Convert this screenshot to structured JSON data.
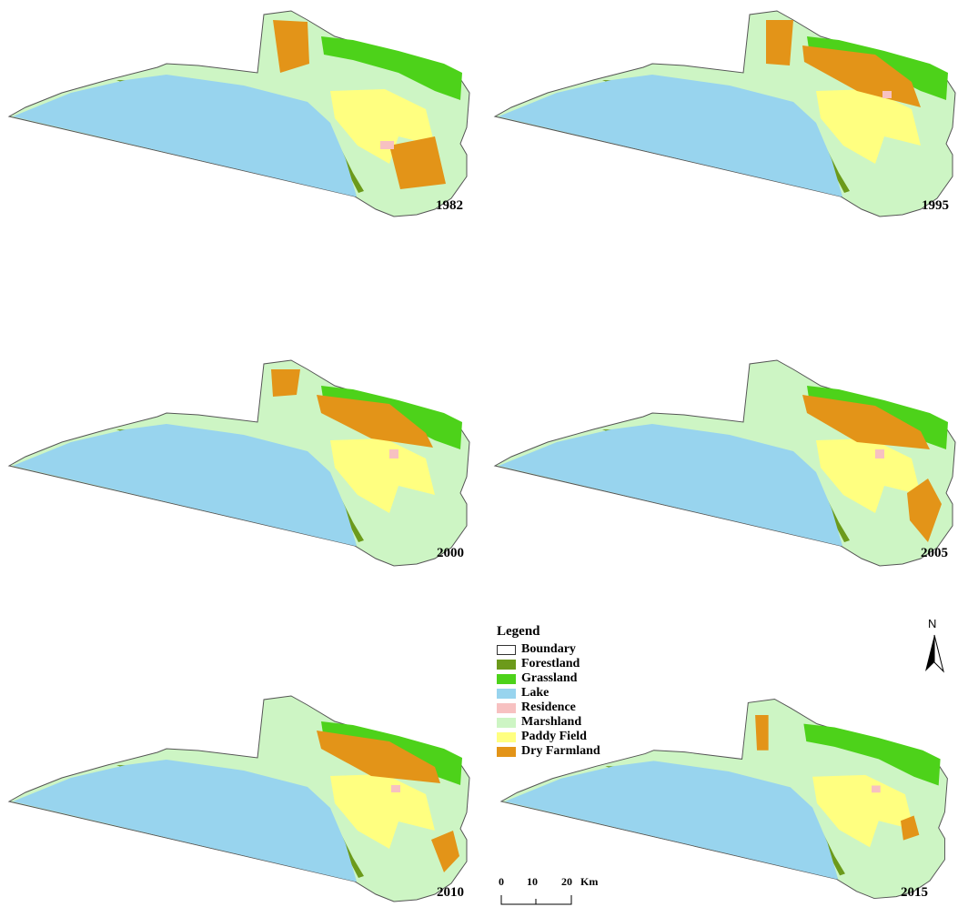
{
  "maps": [
    {
      "year": "1982",
      "dry": [
        [
          420,
          150
        ],
        [
          470,
          140
        ],
        [
          482,
          192
        ],
        [
          432,
          198
        ]
      ],
      "dryN": [
        [
          292,
          12
        ],
        [
          330,
          14
        ],
        [
          332,
          60
        ],
        [
          300,
          70
        ]
      ],
      "residence": [
        [
          410,
          145
        ],
        [
          425,
          145
        ],
        [
          425,
          154
        ],
        [
          410,
          154
        ]
      ]
    },
    {
      "year": "1995",
      "dry": [
        [
          300,
          12
        ],
        [
          330,
          12
        ],
        [
          326,
          62
        ],
        [
          300,
          60
        ]
      ],
      "dryN": [
        [
          340,
          40
        ],
        [
          420,
          50
        ],
        [
          460,
          80
        ],
        [
          470,
          108
        ],
        [
          400,
          90
        ],
        [
          342,
          58
        ]
      ],
      "residence": [
        [
          428,
          90
        ],
        [
          438,
          90
        ],
        [
          438,
          98
        ],
        [
          428,
          98
        ]
      ]
    },
    {
      "year": "2000",
      "dry": [
        [
          290,
          12
        ],
        [
          322,
          12
        ],
        [
          318,
          40
        ],
        [
          292,
          42
        ]
      ],
      "dryN": [
        [
          340,
          40
        ],
        [
          420,
          50
        ],
        [
          460,
          82
        ],
        [
          468,
          98
        ],
        [
          400,
          88
        ],
        [
          345,
          60
        ]
      ],
      "residence": [
        [
          420,
          100
        ],
        [
          430,
          100
        ],
        [
          430,
          110
        ],
        [
          420,
          110
        ]
      ]
    },
    {
      "year": "2005",
      "dry": [
        [
          455,
          148
        ],
        [
          478,
          132
        ],
        [
          493,
          160
        ],
        [
          478,
          202
        ],
        [
          458,
          178
        ]
      ],
      "dryN": [
        [
          340,
          40
        ],
        [
          420,
          52
        ],
        [
          470,
          80
        ],
        [
          480,
          100
        ],
        [
          400,
          92
        ],
        [
          345,
          60
        ]
      ],
      "residence": [
        [
          420,
          100
        ],
        [
          430,
          100
        ],
        [
          430,
          110
        ],
        [
          420,
          110
        ]
      ]
    },
    {
      "year": "2010",
      "dry": [
        [
          466,
          160
        ],
        [
          490,
          150
        ],
        [
          497,
          178
        ],
        [
          480,
          196
        ]
      ],
      "dryN": [
        [
          340,
          40
        ],
        [
          420,
          52
        ],
        [
          470,
          80
        ],
        [
          476,
          98
        ],
        [
          400,
          90
        ],
        [
          345,
          60
        ]
      ],
      "residence": [
        [
          422,
          100
        ],
        [
          432,
          100
        ],
        [
          432,
          108
        ],
        [
          422,
          108
        ]
      ]
    },
    {
      "year": "2015",
      "dry": [
        [
          455,
          140
        ],
        [
          470,
          134
        ],
        [
          476,
          156
        ],
        [
          458,
          162
        ]
      ],
      "dryN": [
        [
          290,
          20
        ],
        [
          305,
          20
        ],
        [
          305,
          60
        ],
        [
          292,
          60
        ]
      ],
      "residence": [
        [
          422,
          100
        ],
        [
          432,
          100
        ],
        [
          432,
          108
        ],
        [
          422,
          108
        ]
      ]
    }
  ],
  "legend": {
    "title": "Legend",
    "items": [
      {
        "label": "Boundary",
        "color": "#ffffff",
        "outline": true
      },
      {
        "label": "Forestland",
        "color": "#6c9a1b"
      },
      {
        "label": "Grassland",
        "color": "#4dd21a"
      },
      {
        "label": "Lake",
        "color": "#98d4ee"
      },
      {
        "label": "Residence",
        "color": "#f7c1c1"
      },
      {
        "label": "Marshland",
        "color": "#cdf5c4"
      },
      {
        "label": "Paddy Field",
        "color": "#ffff80"
      },
      {
        "label": "Dry Farmland",
        "color": "#e39418"
      }
    ]
  },
  "north_label": "N",
  "scale": {
    "labels": [
      "0",
      "10",
      "20"
    ],
    "unit": "Km"
  }
}
